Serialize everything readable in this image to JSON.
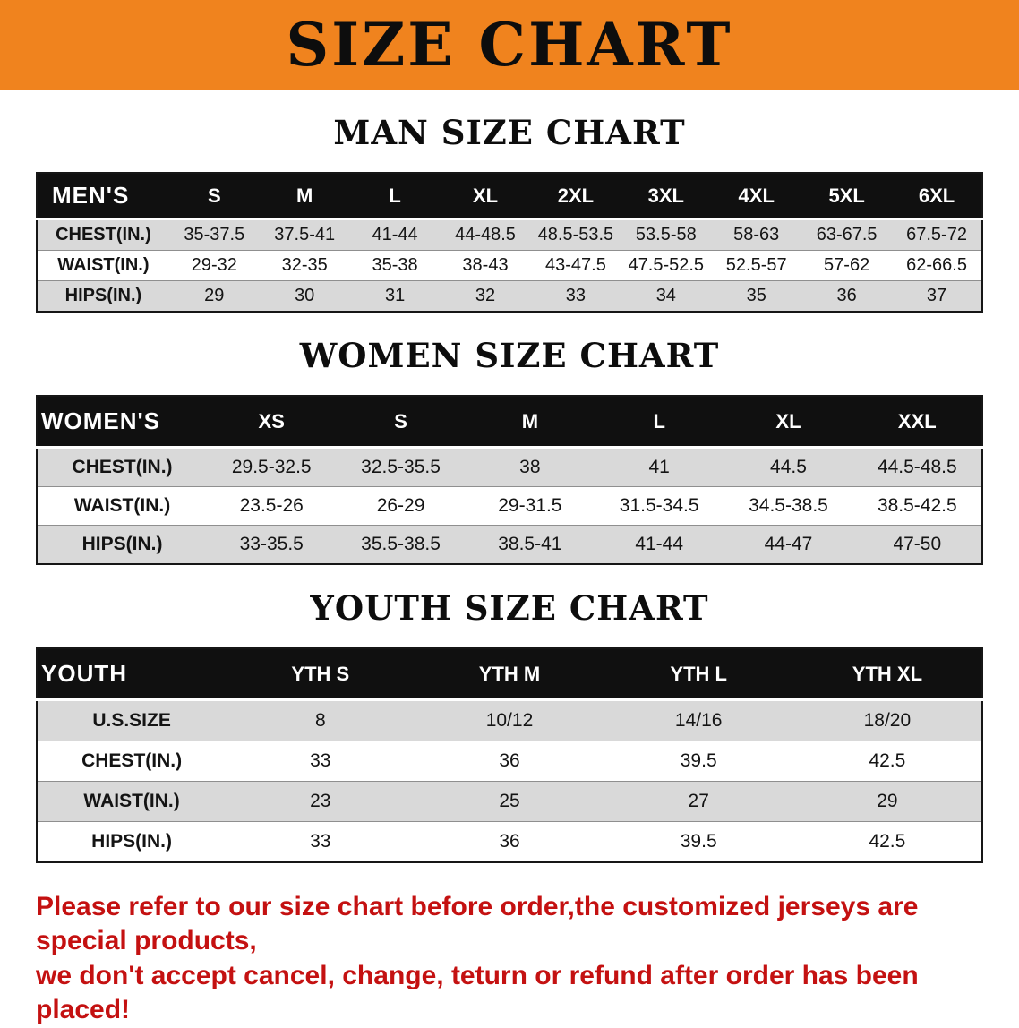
{
  "banner": {
    "title": "SIZE CHART"
  },
  "men": {
    "heading": "MAN SIZE CHART",
    "header": [
      "MEN'S",
      "S",
      "M",
      "L",
      "XL",
      "2XL",
      "3XL",
      "4XL",
      "5XL",
      "6XL"
    ],
    "rows": [
      {
        "label": "CHEST(IN.)",
        "values": [
          "35-37.5",
          "37.5-41",
          "41-44",
          "44-48.5",
          "48.5-53.5",
          "53.5-58",
          "58-63",
          "63-67.5",
          "67.5-72"
        ]
      },
      {
        "label": "WAIST(IN.)",
        "values": [
          "29-32",
          "32-35",
          "35-38",
          "38-43",
          "43-47.5",
          "47.5-52.5",
          "52.5-57",
          "57-62",
          "62-66.5"
        ]
      },
      {
        "label": "HIPS(IN.)",
        "values": [
          "29",
          "30",
          "31",
          "32",
          "33",
          "34",
          "35",
          "36",
          "37"
        ]
      }
    ]
  },
  "women": {
    "heading": "WOMEN SIZE CHART",
    "header": [
      "WOMEN'S",
      "XS",
      "S",
      "M",
      "L",
      "XL",
      "XXL"
    ],
    "rows": [
      {
        "label": "CHEST(IN.)",
        "values": [
          "29.5-32.5",
          "32.5-35.5",
          "38",
          "41",
          "44.5",
          "44.5-48.5"
        ]
      },
      {
        "label": "WAIST(IN.)",
        "values": [
          "23.5-26",
          "26-29",
          "29-31.5",
          "31.5-34.5",
          "34.5-38.5",
          "38.5-42.5"
        ]
      },
      {
        "label": "HIPS(IN.)",
        "values": [
          "33-35.5",
          "35.5-38.5",
          "38.5-41",
          "41-44",
          "44-47",
          "47-50"
        ]
      }
    ]
  },
  "youth": {
    "heading": "YOUTH SIZE CHART",
    "header": [
      "YOUTH",
      "YTH S",
      "YTH M",
      "YTH L",
      "YTH XL"
    ],
    "rows": [
      {
        "label": "U.S.SIZE",
        "values": [
          "8",
          "10/12",
          "14/16",
          "18/20"
        ]
      },
      {
        "label": "CHEST(IN.)",
        "values": [
          "33",
          "36",
          "39.5",
          "42.5"
        ]
      },
      {
        "label": "WAIST(IN.)",
        "values": [
          "23",
          "25",
          "27",
          "29"
        ]
      },
      {
        "label": "HIPS(IN.)",
        "values": [
          "33",
          "36",
          "39.5",
          "42.5"
        ]
      }
    ]
  },
  "footer": {
    "line1": "Please refer to our size chart before order,the customized jerseys are special products,",
    "line2": "we don't accept cancel, change, teturn or refund after order has been placed!"
  },
  "colors": {
    "banner_bg": "#f0831e",
    "table_header_bg": "#101010",
    "row_alt_gray": "#d9d9d9",
    "footer_red": "#c41111"
  }
}
